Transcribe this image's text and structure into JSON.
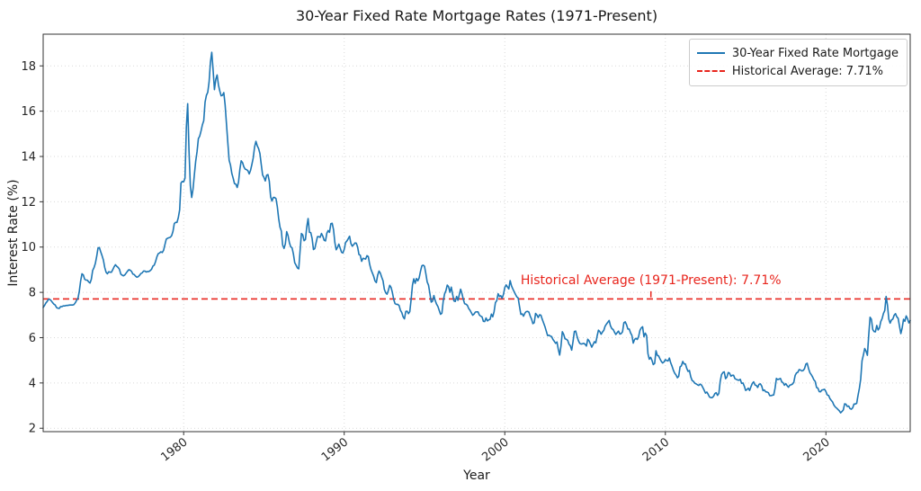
{
  "chart_data": {
    "type": "line",
    "title": "30-Year Fixed Rate Mortgage Rates (1971-Present)",
    "xlabel": "Year",
    "ylabel": "Interest Rate (%)",
    "xlim": [
      1971.25,
      2025.25
    ],
    "ylim": [
      1.85,
      19.4
    ],
    "x_ticks": [
      1980,
      1990,
      2000,
      2010,
      2020
    ],
    "y_ticks": [
      2,
      4,
      6,
      8,
      10,
      12,
      14,
      16,
      18
    ],
    "grid": true,
    "legend_position": "upper-right",
    "colors": {
      "grid": "#d9d9d9",
      "spine": "#333333",
      "tick": "#333333",
      "tick_text": "#262626"
    },
    "series": [
      {
        "name": "30-Year Fixed Rate Mortgage",
        "color": "#1f77b4",
        "style": "solid",
        "start_year": 1971.25,
        "points_per_year": 12,
        "values": [
          7.33,
          7.42,
          7.53,
          7.6,
          7.7,
          7.69,
          7.63,
          7.55,
          7.48,
          7.44,
          7.33,
          7.3,
          7.29,
          7.37,
          7.37,
          7.4,
          7.4,
          7.42,
          7.42,
          7.43,
          7.44,
          7.44,
          7.44,
          7.46,
          7.54,
          7.65,
          7.73,
          8.05,
          8.5,
          8.82,
          8.77,
          8.58,
          8.54,
          8.54,
          8.46,
          8.41,
          8.58,
          8.97,
          9.09,
          9.28,
          9.59,
          9.96,
          9.98,
          9.79,
          9.62,
          9.43,
          9.1,
          8.89,
          8.82,
          8.91,
          8.89,
          8.89,
          9.0,
          9.13,
          9.22,
          9.15,
          9.1,
          9.02,
          8.81,
          8.76,
          8.73,
          8.77,
          8.85,
          8.93,
          9.0,
          8.98,
          8.93,
          8.81,
          8.79,
          8.72,
          8.67,
          8.69,
          8.75,
          8.83,
          8.86,
          8.94,
          8.94,
          8.9,
          8.92,
          8.92,
          8.96,
          9.02,
          9.16,
          9.2,
          9.36,
          9.57,
          9.71,
          9.74,
          9.79,
          9.76,
          9.86,
          10.11,
          10.35,
          10.39,
          10.41,
          10.43,
          10.5,
          10.69,
          11.04,
          11.09,
          11.09,
          11.3,
          11.64,
          12.83,
          12.9,
          12.88,
          13.04,
          15.28,
          16.33,
          14.26,
          12.71,
          12.19,
          12.56,
          13.2,
          13.79,
          14.21,
          14.79,
          14.9,
          15.13,
          15.4,
          15.58,
          16.4,
          16.7,
          16.83,
          17.29,
          18.16,
          18.6,
          17.82,
          16.95,
          17.4,
          17.6,
          17.16,
          16.89,
          16.68,
          16.7,
          16.82,
          16.27,
          15.43,
          14.61,
          13.83,
          13.62,
          13.25,
          13.04,
          12.8,
          12.78,
          12.63,
          12.87,
          13.43,
          13.81,
          13.73,
          13.54,
          13.44,
          13.42,
          13.37,
          13.23,
          13.39,
          13.65,
          13.94,
          14.42,
          14.67,
          14.47,
          14.35,
          14.13,
          13.64,
          13.18,
          13.08,
          12.92,
          13.17,
          13.2,
          12.91,
          12.22,
          12.03,
          12.19,
          12.19,
          12.14,
          11.78,
          11.26,
          10.88,
          10.71,
          10.08,
          9.94,
          10.14,
          10.68,
          10.51,
          10.2,
          10.01,
          9.97,
          9.7,
          9.31,
          9.2,
          9.08,
          9.04,
          9.83,
          10.6,
          10.54,
          10.28,
          10.33,
          10.89,
          11.26,
          10.65,
          10.64,
          10.38,
          9.89,
          9.93,
          10.2,
          10.46,
          10.46,
          10.43,
          10.6,
          10.48,
          10.3,
          10.27,
          10.61,
          10.73,
          10.65,
          11.03,
          11.05,
          10.77,
          10.2,
          9.88,
          9.99,
          10.13,
          9.95,
          9.77,
          9.74,
          9.9,
          10.2,
          10.27,
          10.37,
          10.48,
          10.16,
          10.04,
          10.1,
          10.18,
          10.17,
          10.01,
          9.67,
          9.64,
          9.37,
          9.5,
          9.49,
          9.47,
          9.62,
          9.58,
          9.24,
          9.01,
          8.86,
          8.71,
          8.5,
          8.43,
          8.76,
          8.94,
          8.85,
          8.67,
          8.51,
          8.13,
          7.98,
          7.92,
          8.09,
          8.31,
          8.22,
          7.99,
          7.68,
          7.5,
          7.47,
          7.47,
          7.42,
          7.21,
          7.11,
          6.92,
          6.83,
          7.16,
          7.17,
          7.06,
          7.15,
          7.68,
          8.32,
          8.6,
          8.4,
          8.61,
          8.51,
          8.64,
          8.93,
          9.17,
          9.2,
          9.15,
          8.83,
          8.46,
          8.32,
          7.96,
          7.57,
          7.61,
          7.86,
          7.64,
          7.48,
          7.38,
          7.2,
          7.03,
          7.08,
          7.62,
          7.93,
          8.07,
          8.32,
          8.25,
          8.0,
          8.23,
          7.92,
          7.62,
          7.6,
          7.82,
          7.65,
          7.9,
          8.14,
          7.94,
          7.69,
          7.5,
          7.48,
          7.43,
          7.29,
          7.21,
          7.1,
          6.99,
          7.04,
          7.13,
          7.14,
          7.14,
          7.0,
          6.95,
          6.92,
          6.72,
          6.71,
          6.87,
          6.74,
          6.79,
          6.81,
          7.04,
          6.92,
          7.15,
          7.55,
          7.63,
          7.94,
          7.82,
          7.85,
          7.74,
          7.91,
          8.21,
          8.33,
          8.24,
          8.15,
          8.52,
          8.29,
          8.15,
          8.03,
          7.91,
          7.8,
          7.75,
          7.38,
          7.03,
          7.05,
          6.95,
          7.08,
          7.15,
          7.16,
          7.13,
          6.95,
          6.82,
          6.62,
          6.66,
          7.07,
          7.0,
          6.89,
          7.01,
          6.99,
          6.81,
          6.65,
          6.49,
          6.29,
          6.09,
          6.11,
          6.07,
          6.05,
          5.92,
          5.84,
          5.75,
          5.81,
          5.48,
          5.23,
          5.63,
          6.26,
          6.15,
          5.95,
          5.93,
          5.88,
          5.71,
          5.64,
          5.45,
          5.83,
          6.27,
          6.29,
          6.06,
          5.87,
          5.75,
          5.72,
          5.73,
          5.75,
          5.71,
          5.63,
          5.93,
          5.86,
          5.72,
          5.58,
          5.7,
          5.82,
          5.77,
          6.07,
          6.33,
          6.27,
          6.15,
          6.25,
          6.32,
          6.51,
          6.6,
          6.68,
          6.76,
          6.52,
          6.4,
          6.36,
          6.24,
          6.14,
          6.22,
          6.29,
          6.16,
          6.18,
          6.26,
          6.66,
          6.7,
          6.57,
          6.38,
          6.38,
          6.21,
          6.1,
          5.76,
          5.92,
          5.97,
          5.92,
          6.04,
          6.32,
          6.43,
          6.48,
          6.04,
          6.2,
          6.09,
          5.29,
          5.05,
          5.13,
          5.0,
          4.81,
          4.86,
          5.42,
          5.22,
          5.19,
          5.06,
          4.95,
          4.88,
          4.93,
          5.03,
          4.99,
          4.97,
          5.1,
          4.89,
          4.74,
          4.56,
          4.43,
          4.35,
          4.23,
          4.3,
          4.71,
          4.76,
          4.95,
          4.84,
          4.84,
          4.64,
          4.51,
          4.55,
          4.27,
          4.11,
          4.07,
          3.99,
          3.96,
          3.92,
          3.89,
          3.95,
          3.91,
          3.8,
          3.68,
          3.55,
          3.6,
          3.5,
          3.38,
          3.35,
          3.35,
          3.41,
          3.53,
          3.57,
          3.45,
          3.54,
          4.07,
          4.37,
          4.46,
          4.49,
          4.19,
          4.26,
          4.46,
          4.43,
          4.3,
          4.34,
          4.34,
          4.19,
          4.16,
          4.13,
          4.12,
          4.16,
          3.98,
          4.0,
          3.86,
          3.67,
          3.71,
          3.77,
          3.67,
          3.84,
          3.98,
          4.05,
          3.91,
          3.89,
          3.8,
          3.94,
          3.96,
          3.87,
          3.66,
          3.69,
          3.61,
          3.6,
          3.57,
          3.44,
          3.44,
          3.46,
          3.47,
          3.77,
          4.2,
          4.15,
          4.17,
          4.2,
          4.05,
          4.01,
          3.9,
          3.97,
          3.88,
          3.81,
          3.9,
          3.92,
          3.95,
          4.03,
          4.33,
          4.44,
          4.47,
          4.59,
          4.57,
          4.53,
          4.55,
          4.63,
          4.83,
          4.87,
          4.64,
          4.46,
          4.37,
          4.27,
          4.14,
          4.07,
          3.8,
          3.77,
          3.62,
          3.61,
          3.69,
          3.7,
          3.72,
          3.62,
          3.47,
          3.45,
          3.31,
          3.23,
          3.16,
          3.02,
          2.94,
          2.89,
          2.83,
          2.77,
          2.68,
          2.74,
          2.81,
          3.08,
          3.06,
          2.96,
          2.98,
          2.87,
          2.84,
          2.9,
          3.07,
          3.07,
          3.1,
          3.45,
          3.76,
          4.17,
          4.98,
          5.23,
          5.52,
          5.41,
          5.22,
          6.11,
          6.9,
          6.81,
          6.36,
          6.27,
          6.26,
          6.54,
          6.34,
          6.43,
          6.71,
          6.84,
          7.07,
          7.2,
          7.82,
          7.44,
          6.82,
          6.64,
          6.78,
          6.82,
          6.99,
          7.06,
          6.92,
          6.85,
          6.5,
          6.18,
          6.43,
          6.81,
          6.72,
          6.96,
          6.84,
          6.65,
          6.76
        ]
      }
    ],
    "average_line": {
      "label": "Historical Average: 7.71%",
      "value": 7.71,
      "color": "#e8251d",
      "style": "dashed"
    },
    "annotation": {
      "text": "Historical Average (1971-Present): 7.71%",
      "x": 2009.1,
      "text_y": 8.22,
      "connector_y1": 8.05,
      "connector_y2": 7.78,
      "color": "#e8251d"
    }
  }
}
